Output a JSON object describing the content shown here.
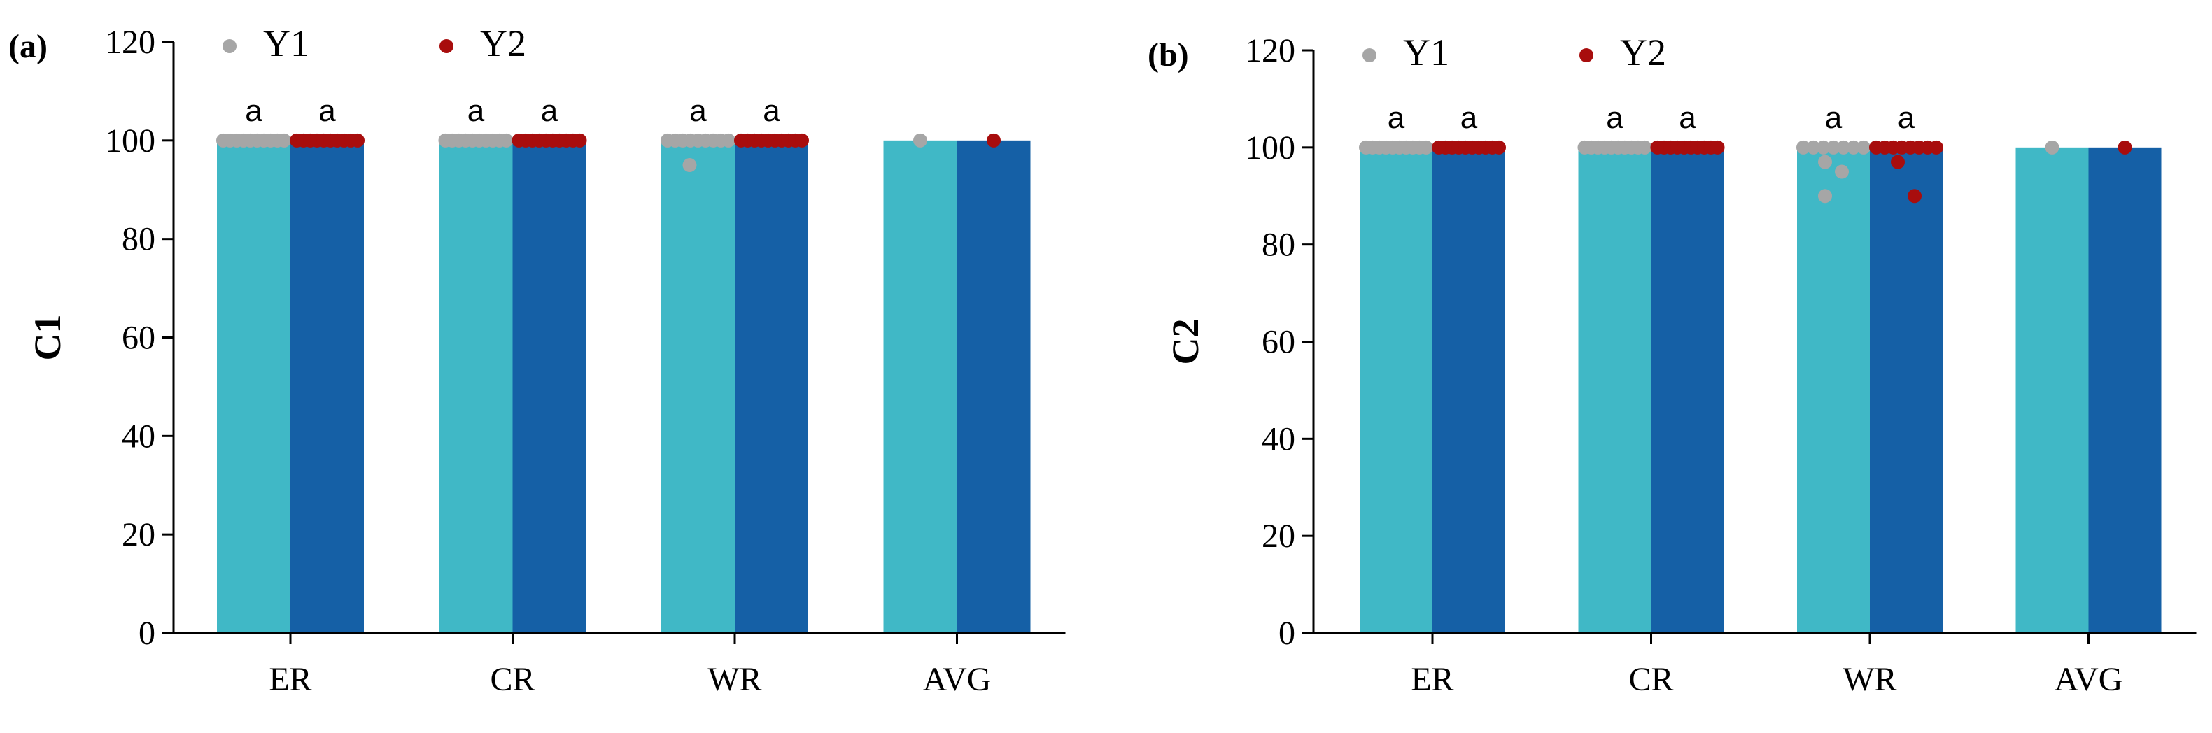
{
  "colors": {
    "y1_bar": "#40B8C6",
    "y2_bar": "#1560A6",
    "y1_point": "#A6A6A6",
    "y2_point": "#A80D0D",
    "axis": "#000000"
  },
  "chart_data": [
    {
      "type": "bar",
      "panel_label": "(a)",
      "ylabel": "C1",
      "xlabel": "",
      "ylim": [
        0,
        120
      ],
      "yticks": [
        0,
        20,
        40,
        60,
        80,
        100,
        120
      ],
      "categories": [
        "ER",
        "CR",
        "WR",
        "AVG"
      ],
      "legend": [
        "Y1",
        "Y2"
      ],
      "series": [
        {
          "name": "Y1",
          "values": [
            100,
            100,
            100,
            100
          ],
          "points": [
            [
              100,
              100,
              100,
              100,
              100,
              100,
              100,
              100,
              100,
              100
            ],
            [
              100,
              100,
              100,
              100,
              100,
              100,
              100,
              100,
              100,
              100
            ],
            [
              100,
              100,
              100,
              100,
              100,
              100,
              100,
              100,
              100,
              95
            ],
            [
              100
            ]
          ],
          "significance": [
            "a",
            "a",
            "a",
            ""
          ]
        },
        {
          "name": "Y2",
          "values": [
            100,
            100,
            100,
            100
          ],
          "points": [
            [
              100,
              100,
              100,
              100,
              100,
              100,
              100,
              100,
              100,
              100
            ],
            [
              100,
              100,
              100,
              100,
              100,
              100,
              100,
              100,
              100,
              100
            ],
            [
              100,
              100,
              100,
              100,
              100,
              100,
              100,
              100,
              100,
              100
            ],
            [
              100
            ]
          ],
          "significance": [
            "a",
            "a",
            "a",
            ""
          ]
        }
      ]
    },
    {
      "type": "bar",
      "panel_label": "(b)",
      "ylabel": "C2",
      "xlabel": "",
      "ylim": [
        0,
        120
      ],
      "yticks": [
        0,
        20,
        40,
        60,
        80,
        100,
        120
      ],
      "categories": [
        "ER",
        "CR",
        "WR",
        "AVG"
      ],
      "legend": [
        "Y1",
        "Y2"
      ],
      "series": [
        {
          "name": "Y1",
          "values": [
            100,
            100,
            100,
            100
          ],
          "points": [
            [
              100,
              100,
              100,
              100,
              100,
              100,
              100,
              100,
              100,
              100
            ],
            [
              100,
              100,
              100,
              100,
              100,
              100,
              100,
              100,
              100,
              100
            ],
            [
              100,
              100,
              100,
              100,
              100,
              100,
              100,
              97,
              95,
              90
            ],
            [
              100
            ]
          ],
          "significance": [
            "a",
            "a",
            "a",
            ""
          ]
        },
        {
          "name": "Y2",
          "values": [
            100,
            100,
            100,
            100
          ],
          "points": [
            [
              100,
              100,
              100,
              100,
              100,
              100,
              100,
              100,
              100,
              100
            ],
            [
              100,
              100,
              100,
              100,
              100,
              100,
              100,
              100,
              100,
              100
            ],
            [
              100,
              100,
              100,
              100,
              100,
              100,
              100,
              100,
              97,
              90
            ],
            [
              100
            ]
          ],
          "significance": [
            "a",
            "a",
            "a",
            ""
          ]
        }
      ]
    }
  ]
}
